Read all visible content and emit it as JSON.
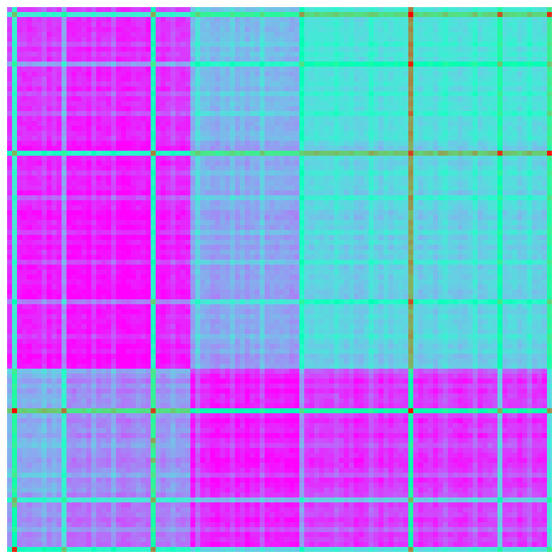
{
  "chart_data": {
    "type": "heatmap",
    "title": "",
    "xlabel": "",
    "ylabel": "",
    "colormap": "rainbow",
    "value_range": [
      0,
      1
    ],
    "grid": false,
    "axes_visible": false,
    "n_rows": 110,
    "n_cols": 110,
    "row_order": "top-to-bottom",
    "blocks": {
      "row_boundaries": [
        0,
        27,
        73,
        98,
        110
      ],
      "col_boundaries": [
        0,
        12,
        37,
        59,
        110
      ],
      "block_means": [
        [
          0.06,
          0.05,
          0.26,
          0.34
        ],
        [
          0.03,
          0.02,
          0.22,
          0.3
        ],
        [
          0.23,
          0.18,
          0.03,
          0.06
        ],
        [
          0.18,
          0.14,
          0.04,
          0.07
        ]
      ]
    },
    "bright_bands": [
      {
        "index": 81,
        "strength": 0.85
      },
      {
        "index": 29,
        "strength": 0.75
      },
      {
        "index": 1,
        "strength": 0.6
      },
      {
        "index": 109,
        "strength": 0.5
      },
      {
        "index": 99,
        "strength": 0.4
      },
      {
        "index": 11,
        "strength": 0.3
      },
      {
        "index": 59,
        "strength": 0.25
      },
      {
        "index": 38,
        "strength": 0.15
      },
      {
        "index": 51,
        "strength": 0.12
      },
      {
        "index": 73,
        "strength": 0.1
      },
      {
        "index": 94,
        "strength": 0.1
      },
      {
        "index": 105,
        "strength": 0.1
      },
      {
        "index": 33,
        "strength": 0.1
      },
      {
        "index": 21,
        "strength": 0.1
      },
      {
        "index": 88,
        "strength": 0.08
      },
      {
        "index": 66,
        "strength": 0.08
      },
      {
        "index": 45,
        "strength": 0.08
      },
      {
        "index": 17,
        "strength": 0.08
      },
      {
        "index": 7,
        "strength": 0.08
      }
    ],
    "hot_spots": [
      {
        "row": 29,
        "col": 81,
        "value": 0.92
      },
      {
        "row": 109,
        "col": 1,
        "value": 0.95
      },
      {
        "row": 29,
        "col": 87,
        "value": 0.78
      },
      {
        "row": 29,
        "col": 91,
        "value": 0.74
      },
      {
        "row": 29,
        "col": 59,
        "value": 0.7
      },
      {
        "row": 109,
        "col": 11,
        "value": 0.72
      },
      {
        "row": 100,
        "col": 1,
        "value": 0.7
      }
    ]
  }
}
